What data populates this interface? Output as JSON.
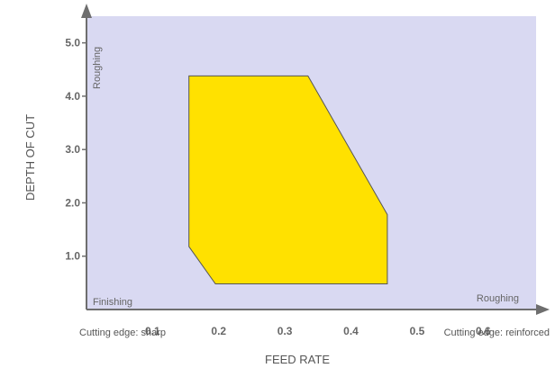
{
  "chart_data": {
    "type": "area",
    "xlabel": "FEED RATE",
    "ylabel": "DEPTH OF CUT",
    "x_ticks": [
      "0.1",
      "0.2",
      "0.3",
      "0.4",
      "0.5",
      "0.6"
    ],
    "y_ticks": [
      "1.0",
      "2.0",
      "3.0",
      "4.0",
      "5.0"
    ],
    "xlim": [
      0.0,
      0.68
    ],
    "ylim": [
      0.0,
      5.5
    ],
    "region": {
      "fill": "#ffe100",
      "points": [
        [
          0.155,
          4.38
        ],
        [
          0.335,
          4.38
        ],
        [
          0.455,
          1.78
        ],
        [
          0.455,
          0.48
        ],
        [
          0.195,
          0.48
        ],
        [
          0.155,
          1.18
        ]
      ]
    },
    "annotations": {
      "roughing_vertical": "Roughing",
      "finishing": "Finishing",
      "roughing_horizontal": "Roughing",
      "edge_left": "Cutting edge: sharp",
      "edge_right": "Cutting edge: reinforced"
    },
    "grid": false,
    "legend": "none",
    "colors": {
      "background": "#d9d9f2",
      "axis": "#6e6e6e",
      "region": "#ffe100",
      "region_outline": "#555555"
    }
  }
}
